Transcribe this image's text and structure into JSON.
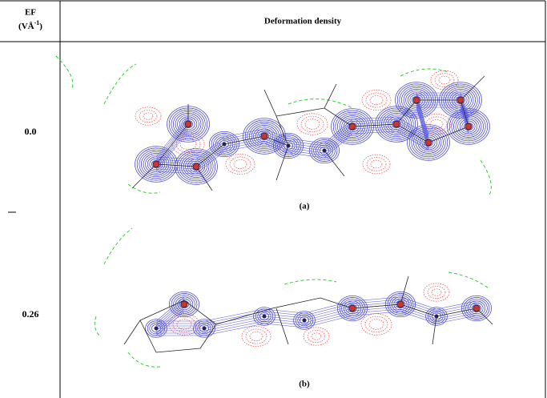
{
  "table": {
    "header": {
      "ef_label": "EF",
      "ef_unit_open": "(VÅ",
      "ef_unit_exponent": "-1",
      "ef_unit_close": ")",
      "density": "Deformation density"
    },
    "rows": [
      {
        "ef": "0.0",
        "caption": "(a)"
      },
      {
        "ef": "0.26",
        "caption": "(b)"
      }
    ]
  }
}
